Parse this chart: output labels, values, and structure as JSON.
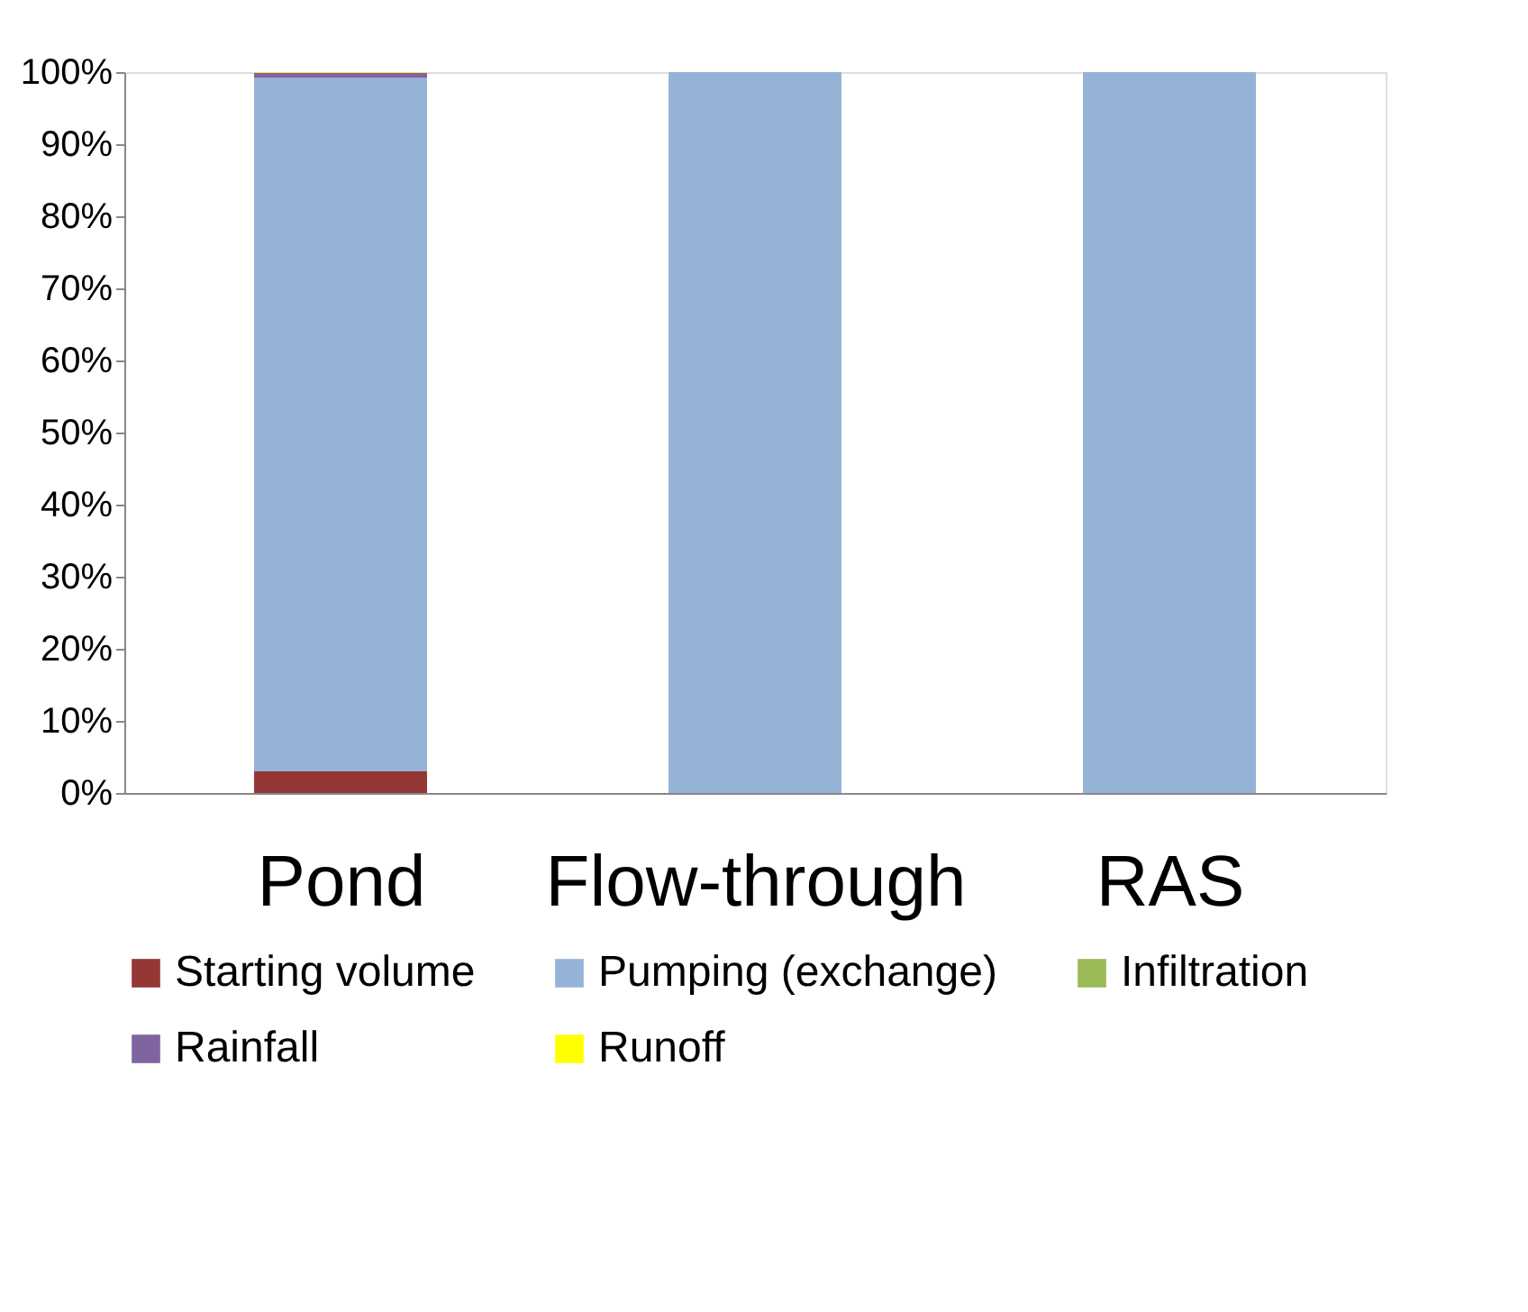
{
  "chart_data": {
    "type": "bar",
    "stacked": true,
    "categories": [
      "Pond",
      "Flow-through",
      "RAS"
    ],
    "series": [
      {
        "name": "Starting volume",
        "color": "#953735",
        "values": [
          3,
          0,
          0
        ]
      },
      {
        "name": "Pumping (exchange)",
        "color": "#95b3d7",
        "values": [
          96.2,
          100,
          100
        ]
      },
      {
        "name": "Infiltration",
        "color": "#9bbb59",
        "values": [
          0,
          0,
          0
        ]
      },
      {
        "name": "Rainfall",
        "color": "#8064a2",
        "values": [
          0.7,
          0,
          0
        ]
      },
      {
        "name": "Runoff",
        "color": "#ffff00",
        "values": [
          0.1,
          0,
          0
        ]
      }
    ],
    "ylim": [
      0,
      100
    ],
    "yticks": [
      {
        "value": 0,
        "label": "0%"
      },
      {
        "value": 10,
        "label": "10%"
      },
      {
        "value": 20,
        "label": "20%"
      },
      {
        "value": 30,
        "label": "30%"
      },
      {
        "value": 40,
        "label": "40%"
      },
      {
        "value": 50,
        "label": "50%"
      },
      {
        "value": 60,
        "label": "60%"
      },
      {
        "value": 70,
        "label": "70%"
      },
      {
        "value": 80,
        "label": "80%"
      },
      {
        "value": 90,
        "label": "90%"
      },
      {
        "value": 100,
        "label": "100%"
      }
    ],
    "grid": false,
    "legend": "bottom"
  }
}
